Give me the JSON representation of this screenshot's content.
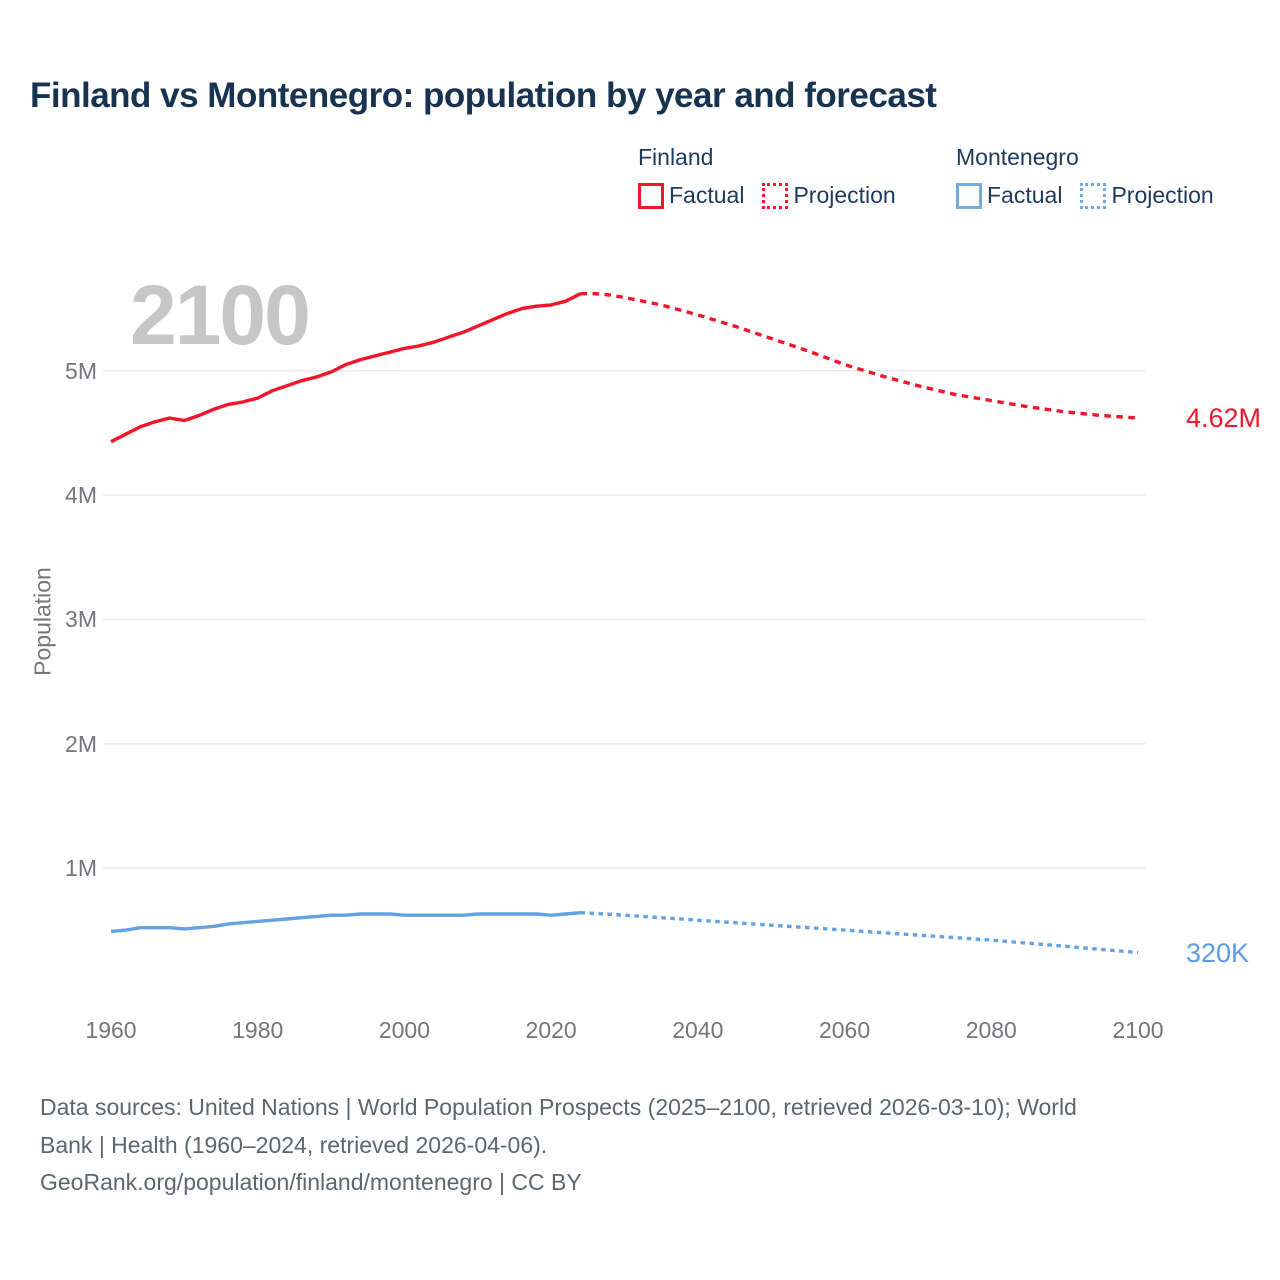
{
  "title": "Finland vs Montenegro: population by year and forecast",
  "watermark": "2100",
  "legend": {
    "groups": [
      {
        "name": "Finland",
        "color": "#f2152b",
        "items": [
          {
            "label": "Factual",
            "style": "solid"
          },
          {
            "label": "Projection",
            "style": "dotted"
          }
        ]
      },
      {
        "name": "Montenegro",
        "color": "#74abe4",
        "items": [
          {
            "label": "Factual",
            "style": "solid"
          },
          {
            "label": "Projection",
            "style": "dotted"
          }
        ]
      }
    ]
  },
  "chart_data": {
    "type": "line",
    "title": "Finland vs Montenegro: population by year and forecast",
    "xlabel": "",
    "ylabel": "Population",
    "units": "millions of people",
    "xlim": [
      1960,
      2100
    ],
    "ylim": [
      0,
      5.9
    ],
    "grid": "horizontal",
    "legend_position": "top-right",
    "x_ticks": [
      1960,
      1980,
      2000,
      2020,
      2040,
      2060,
      2080,
      2100
    ],
    "y_ticks": [
      {
        "value": 1,
        "label": "1M"
      },
      {
        "value": 2,
        "label": "2M"
      },
      {
        "value": 3,
        "label": "3M"
      },
      {
        "value": 4,
        "label": "4M"
      },
      {
        "value": 5,
        "label": "5M"
      }
    ],
    "series": [
      {
        "name": "Finland Factual",
        "color": "#f2152b",
        "style": "solid",
        "points": [
          [
            1960,
            4.43
          ],
          [
            1962,
            4.49
          ],
          [
            1964,
            4.55
          ],
          [
            1966,
            4.59
          ],
          [
            1968,
            4.62
          ],
          [
            1969,
            4.61
          ],
          [
            1970,
            4.6
          ],
          [
            1972,
            4.64
          ],
          [
            1974,
            4.69
          ],
          [
            1976,
            4.73
          ],
          [
            1978,
            4.75
          ],
          [
            1980,
            4.78
          ],
          [
            1982,
            4.84
          ],
          [
            1984,
            4.88
          ],
          [
            1986,
            4.92
          ],
          [
            1988,
            4.95
          ],
          [
            1990,
            4.99
          ],
          [
            1992,
            5.05
          ],
          [
            1994,
            5.09
          ],
          [
            1996,
            5.12
          ],
          [
            1998,
            5.15
          ],
          [
            2000,
            5.18
          ],
          [
            2002,
            5.2
          ],
          [
            2004,
            5.23
          ],
          [
            2006,
            5.27
          ],
          [
            2008,
            5.31
          ],
          [
            2010,
            5.36
          ],
          [
            2012,
            5.41
          ],
          [
            2014,
            5.46
          ],
          [
            2016,
            5.5
          ],
          [
            2018,
            5.52
          ],
          [
            2020,
            5.53
          ],
          [
            2022,
            5.56
          ],
          [
            2024,
            5.62
          ]
        ]
      },
      {
        "name": "Finland Projection",
        "color": "#f2152b",
        "style": "dotted",
        "points": [
          [
            2024,
            5.62
          ],
          [
            2026,
            5.62
          ],
          [
            2028,
            5.61
          ],
          [
            2030,
            5.59
          ],
          [
            2035,
            5.53
          ],
          [
            2040,
            5.45
          ],
          [
            2045,
            5.36
          ],
          [
            2050,
            5.26
          ],
          [
            2055,
            5.16
          ],
          [
            2060,
            5.05
          ],
          [
            2065,
            4.96
          ],
          [
            2070,
            4.88
          ],
          [
            2075,
            4.81
          ],
          [
            2080,
            4.76
          ],
          [
            2085,
            4.71
          ],
          [
            2090,
            4.67
          ],
          [
            2095,
            4.64
          ],
          [
            2100,
            4.62
          ]
        ]
      },
      {
        "name": "Montenegro Factual",
        "color": "#64a2e2",
        "style": "solid",
        "points": [
          [
            1960,
            0.49
          ],
          [
            1962,
            0.5
          ],
          [
            1964,
            0.52
          ],
          [
            1966,
            0.52
          ],
          [
            1968,
            0.52
          ],
          [
            1970,
            0.51
          ],
          [
            1972,
            0.52
          ],
          [
            1974,
            0.53
          ],
          [
            1976,
            0.55
          ],
          [
            1978,
            0.56
          ],
          [
            1980,
            0.57
          ],
          [
            1982,
            0.58
          ],
          [
            1984,
            0.59
          ],
          [
            1986,
            0.6
          ],
          [
            1988,
            0.61
          ],
          [
            1990,
            0.62
          ],
          [
            1992,
            0.62
          ],
          [
            1994,
            0.63
          ],
          [
            1996,
            0.63
          ],
          [
            1998,
            0.63
          ],
          [
            2000,
            0.62
          ],
          [
            2002,
            0.62
          ],
          [
            2004,
            0.62
          ],
          [
            2006,
            0.62
          ],
          [
            2008,
            0.62
          ],
          [
            2010,
            0.63
          ],
          [
            2012,
            0.63
          ],
          [
            2014,
            0.63
          ],
          [
            2016,
            0.63
          ],
          [
            2018,
            0.63
          ],
          [
            2020,
            0.62
          ],
          [
            2022,
            0.63
          ],
          [
            2024,
            0.64
          ]
        ]
      },
      {
        "name": "Montenegro Projection",
        "color": "#64a2e2",
        "style": "dotted",
        "points": [
          [
            2024,
            0.64
          ],
          [
            2030,
            0.62
          ],
          [
            2040,
            0.58
          ],
          [
            2050,
            0.54
          ],
          [
            2060,
            0.5
          ],
          [
            2070,
            0.46
          ],
          [
            2080,
            0.42
          ],
          [
            2090,
            0.37
          ],
          [
            2100,
            0.32
          ]
        ]
      }
    ],
    "end_labels": [
      {
        "series": "Finland",
        "text": "4.62M",
        "value": 4.62,
        "flag": "finland"
      },
      {
        "series": "Montenegro",
        "text": "320K",
        "value": 0.32,
        "flag": "montenegro"
      }
    ]
  },
  "footer": {
    "lines": [
      "Data sources: United Nations | World Population Prospects (2025–2100, retrieved 2026-03-10); World",
      "Bank | Health (1960–2024, retrieved 2026-04-06).",
      "GeoRank.org/population/finland/montenegro | CC BY"
    ]
  }
}
